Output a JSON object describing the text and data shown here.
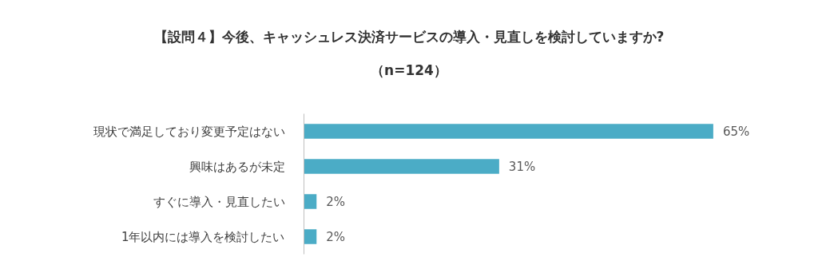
{
  "chart_data": {
    "type": "bar",
    "orientation": "horizontal",
    "title": "【設問４】今後、キャッシュレス決済サービスの導入・見直しを検討していますか?",
    "subtitle": "（n=124）",
    "categories": [
      "現状で満足しており変更予定はない",
      "興味はあるが未定",
      "すぐに導入・見直したい",
      "1年以内には導入を検討したい"
    ],
    "values": [
      65,
      31,
      2,
      2
    ],
    "value_labels": [
      "65%",
      "31%",
      "2%",
      "2%"
    ],
    "color": "#4bacc6",
    "grid": false
  }
}
